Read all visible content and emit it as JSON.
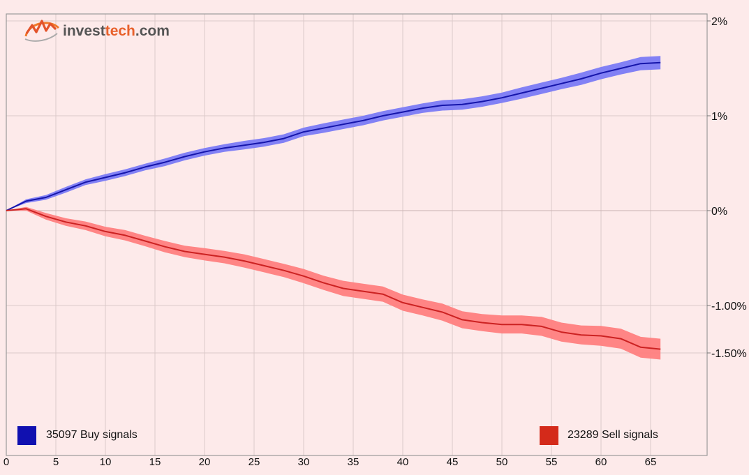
{
  "brand": {
    "name_a": "invest",
    "name_b": "tech",
    "name_c": ".com"
  },
  "chart_data": {
    "type": "line",
    "x_ticks": [
      0,
      5,
      10,
      15,
      20,
      25,
      30,
      35,
      40,
      45,
      50,
      55,
      60,
      65
    ],
    "y_ticks": [
      {
        "value": 2.0,
        "label": "2%"
      },
      {
        "value": 1.0,
        "label": "1%"
      },
      {
        "value": 0.0,
        "label": "0%"
      },
      {
        "value": -1.0,
        "label": "-1.00%"
      },
      {
        "value": -1.5,
        "label": "-1.50%"
      }
    ],
    "xlim": [
      0,
      67
    ],
    "ylim": [
      -2.6,
      2.05
    ],
    "grid": true,
    "series": [
      {
        "name": "Buy signals",
        "count": "35097",
        "legend_label": "35097 Buy signals",
        "line_color": "#1515aa",
        "band_color": "#7b7bf5",
        "legend_color": "#1010b0",
        "x": [
          0,
          2,
          4,
          6,
          8,
          10,
          12,
          14,
          16,
          18,
          20,
          22,
          24,
          26,
          28,
          30,
          32,
          34,
          36,
          38,
          40,
          42,
          44,
          46,
          48,
          50,
          52,
          54,
          56,
          58,
          60,
          62,
          64,
          66
        ],
        "y": [
          0.0,
          0.1,
          0.14,
          0.22,
          0.3,
          0.35,
          0.4,
          0.46,
          0.51,
          0.57,
          0.62,
          0.66,
          0.69,
          0.72,
          0.76,
          0.83,
          0.87,
          0.91,
          0.95,
          1.0,
          1.04,
          1.08,
          1.11,
          1.12,
          1.15,
          1.19,
          1.24,
          1.29,
          1.34,
          1.39,
          1.45,
          1.5,
          1.55,
          1.56
        ],
        "band_halfwidth": [
          0.0,
          0.02,
          0.025,
          0.03,
          0.03,
          0.035,
          0.035,
          0.035,
          0.04,
          0.04,
          0.04,
          0.04,
          0.045,
          0.045,
          0.045,
          0.045,
          0.05,
          0.05,
          0.05,
          0.05,
          0.05,
          0.05,
          0.055,
          0.055,
          0.055,
          0.055,
          0.06,
          0.06,
          0.06,
          0.065,
          0.065,
          0.065,
          0.07,
          0.07
        ]
      },
      {
        "name": "Sell signals",
        "count": "23289",
        "legend_label": "23289 Sell signals",
        "line_color": "#cc2222",
        "band_color": "#ff7f7f",
        "legend_color": "#d42a1a",
        "x": [
          0,
          2,
          4,
          6,
          8,
          10,
          12,
          14,
          16,
          18,
          20,
          22,
          24,
          26,
          28,
          30,
          32,
          34,
          36,
          38,
          40,
          42,
          44,
          46,
          48,
          50,
          52,
          54,
          56,
          58,
          60,
          62,
          64,
          66
        ],
        "y": [
          0.0,
          0.02,
          -0.06,
          -0.12,
          -0.16,
          -0.22,
          -0.26,
          -0.32,
          -0.38,
          -0.43,
          -0.46,
          -0.49,
          -0.53,
          -0.58,
          -0.63,
          -0.69,
          -0.76,
          -0.82,
          -0.85,
          -0.88,
          -0.97,
          -1.02,
          -1.07,
          -1.15,
          -1.18,
          -1.2,
          -1.2,
          -1.22,
          -1.28,
          -1.31,
          -1.32,
          -1.35,
          -1.44,
          -1.46
        ],
        "band_halfwidth": [
          0.0,
          0.02,
          0.035,
          0.04,
          0.045,
          0.05,
          0.055,
          0.055,
          0.06,
          0.06,
          0.065,
          0.065,
          0.07,
          0.07,
          0.07,
          0.075,
          0.075,
          0.08,
          0.08,
          0.08,
          0.085,
          0.085,
          0.09,
          0.09,
          0.09,
          0.095,
          0.095,
          0.1,
          0.1,
          0.1,
          0.105,
          0.105,
          0.11,
          0.11
        ]
      }
    ]
  }
}
